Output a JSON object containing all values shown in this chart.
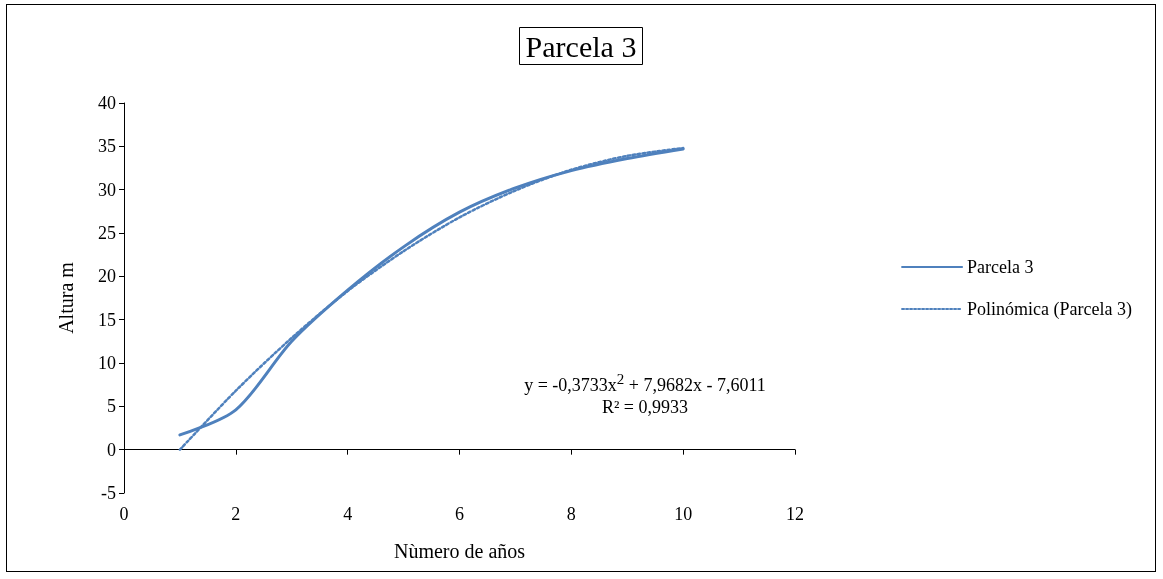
{
  "chart_data": {
    "type": "line",
    "title": "Parcela 3",
    "xlabel": "Nùmero de años",
    "ylabel": "Altura m",
    "x": [
      1,
      2,
      3,
      4,
      5,
      6,
      7,
      8,
      9,
      10
    ],
    "series": [
      {
        "name": "Parcela 3",
        "color": "#4f81bd",
        "line_style": "solid",
        "values": [
          1.7,
          4.6,
          12.5,
          18.4,
          23.4,
          27.4,
          30.2,
          32.2,
          33.6,
          34.7
        ]
      },
      {
        "name": "Polinómica (Parcela 3)",
        "color": "#4f81bd",
        "line_style": "dotted",
        "values": [
          0,
          6.8,
          12.9,
          18.3,
          22.9,
          26.8,
          29.9,
          32.3,
          33.9,
          34.8
        ]
      }
    ],
    "xlim": [
      0,
      12
    ],
    "xticks": [
      0,
      2,
      4,
      6,
      8,
      10,
      12
    ],
    "ylim": [
      -5,
      40
    ],
    "yticks": [
      -5,
      0,
      5,
      10,
      15,
      20,
      25,
      30,
      35,
      40
    ],
    "annotations": [
      "y = -0,3733x$^{2}$ + 7,9682x - 7,6011",
      "R² = 0,9933"
    ],
    "legend": "right",
    "marker": "none"
  }
}
